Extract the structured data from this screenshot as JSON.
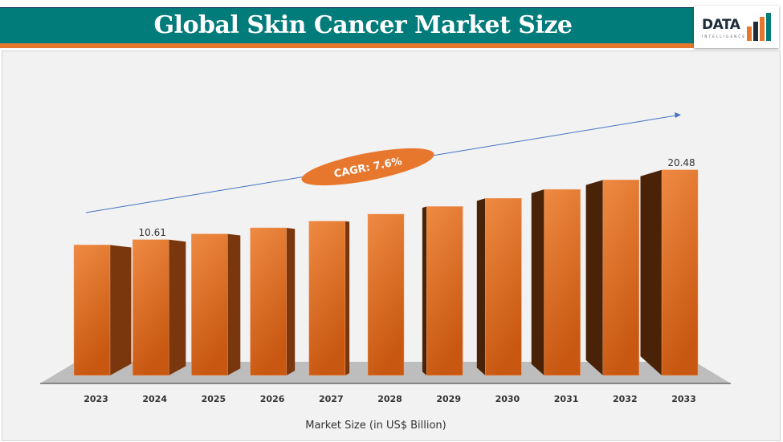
{
  "header": {
    "title": "Global Skin Cancer Market Size",
    "logo_text": "DATA",
    "logo_subtext": "INTELLIGENCE"
  },
  "colors": {
    "header_bg": "#027b7b",
    "accent": "#e8772e",
    "bar_front": "#c95a14",
    "bar_side": "#7a360d",
    "panel_bg": "#f2f2f2"
  },
  "chart_data": {
    "type": "bar",
    "title": "",
    "xlabel": "Market Size (in US$ Billion)",
    "ylabel": "",
    "categories": [
      "2023",
      "2024",
      "2025",
      "2026",
      "2027",
      "2028",
      "2029",
      "2030",
      "2031",
      "2032",
      "2033"
    ],
    "values": [
      9.86,
      10.61,
      11.42,
      12.28,
      13.22,
      14.22,
      15.3,
      16.46,
      17.72,
      19.06,
      20.48
    ],
    "data_labels": [
      {
        "category": "2024",
        "text": "10.61"
      },
      {
        "category": "2033",
        "text": "20.48"
      }
    ],
    "annotation": {
      "text": "CAGR: 7.6%"
    },
    "grid": false,
    "style": "3d-column"
  }
}
